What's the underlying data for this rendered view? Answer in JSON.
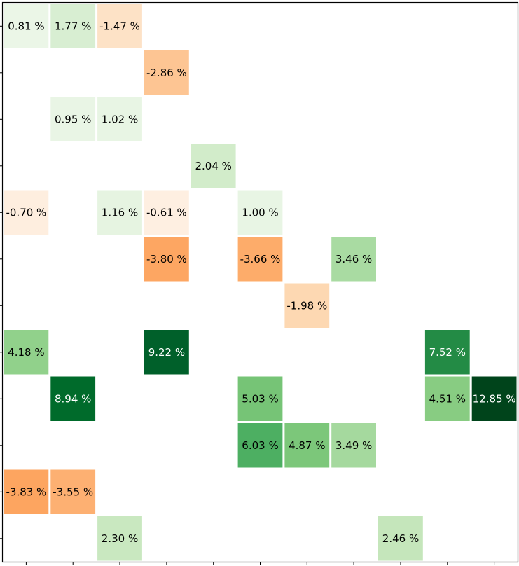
{
  "chart_data": {
    "type": "heatmap",
    "title": "",
    "xlabel": "",
    "ylabel": "",
    "n_rows": 12,
    "n_cols": 11,
    "value_unit": "%",
    "grid": false,
    "colormap": {
      "negative": "Oranges",
      "positive": "Greens"
    },
    "cells": [
      {
        "row": 0,
        "col": 0,
        "value": 0.81,
        "label": "0.81 %"
      },
      {
        "row": 0,
        "col": 1,
        "value": 1.77,
        "label": "1.77 %"
      },
      {
        "row": 0,
        "col": 2,
        "value": -1.47,
        "label": "-1.47 %"
      },
      {
        "row": 1,
        "col": 3,
        "value": -2.86,
        "label": "-2.86 %"
      },
      {
        "row": 2,
        "col": 1,
        "value": 0.95,
        "label": "0.95 %"
      },
      {
        "row": 2,
        "col": 2,
        "value": 1.02,
        "label": "1.02 %"
      },
      {
        "row": 3,
        "col": 4,
        "value": 2.04,
        "label": "2.04 %"
      },
      {
        "row": 4,
        "col": 0,
        "value": -0.7,
        "label": "-0.70 %"
      },
      {
        "row": 4,
        "col": 2,
        "value": 1.16,
        "label": "1.16 %"
      },
      {
        "row": 4,
        "col": 3,
        "value": -0.61,
        "label": "-0.61 %"
      },
      {
        "row": 4,
        "col": 5,
        "value": 1.0,
        "label": "1.00 %"
      },
      {
        "row": 5,
        "col": 3,
        "value": -3.8,
        "label": "-3.80 %"
      },
      {
        "row": 5,
        "col": 5,
        "value": -3.66,
        "label": "-3.66 %"
      },
      {
        "row": 5,
        "col": 7,
        "value": 3.46,
        "label": "3.46 %"
      },
      {
        "row": 6,
        "col": 6,
        "value": -1.98,
        "label": "-1.98 %"
      },
      {
        "row": 7,
        "col": 0,
        "value": 4.18,
        "label": "4.18 %"
      },
      {
        "row": 7,
        "col": 3,
        "value": 9.22,
        "label": "9.22 %"
      },
      {
        "row": 7,
        "col": 9,
        "value": 7.52,
        "label": "7.52 %"
      },
      {
        "row": 8,
        "col": 1,
        "value": 8.94,
        "label": "8.94 %"
      },
      {
        "row": 8,
        "col": 5,
        "value": 5.03,
        "label": "5.03 %"
      },
      {
        "row": 8,
        "col": 9,
        "value": 4.51,
        "label": "4.51 %"
      },
      {
        "row": 8,
        "col": 10,
        "value": 12.85,
        "label": "12.85 %"
      },
      {
        "row": 9,
        "col": 5,
        "value": 6.03,
        "label": "6.03 %"
      },
      {
        "row": 9,
        "col": 6,
        "value": 4.87,
        "label": "4.87 %"
      },
      {
        "row": 9,
        "col": 7,
        "value": 3.49,
        "label": "3.49 %"
      },
      {
        "row": 10,
        "col": 0,
        "value": -3.83,
        "label": "-3.83 %"
      },
      {
        "row": 10,
        "col": 1,
        "value": -3.55,
        "label": "-3.55 %"
      },
      {
        "row": 11,
        "col": 2,
        "value": 2.3,
        "label": "2.30 %"
      },
      {
        "row": 11,
        "col": 8,
        "value": 2.46,
        "label": "2.46 %"
      }
    ],
    "colors": {
      "0.81": "#ebf6e7",
      "1.77": "#d8eed2",
      "-1.47": "#fde2c6",
      "-2.86": "#fdc593",
      "0.95": "#e9f5e5",
      "1.02": "#e8f5e4",
      "2.04": "#d2ecca",
      "-0.70": "#feeedf",
      "1.16": "#e6f4e1",
      "-0.61": "#feefe1",
      "1.00": "#e8f5e4",
      "-3.80": "#fda662",
      "-3.66": "#fdac6a",
      "3.46": "#a9dba2",
      "-1.98": "#fdd8b2",
      "4.18": "#91d18b",
      "9.22": "#00602a",
      "7.52": "#238b45",
      "8.94": "#006b2b",
      "5.03": "#76c476",
      "4.51": "#88cc82",
      "12.85": "#00441b",
      "6.03": "#4daf62",
      "4.87": "#7cc77a",
      "3.49": "#a5d99e",
      "-3.83": "#fda560",
      "-3.55": "#fdb072",
      "2.30": "#c9e8c0",
      "2.46": "#c5e6bb"
    },
    "light_text_threshold": 7.0
  }
}
